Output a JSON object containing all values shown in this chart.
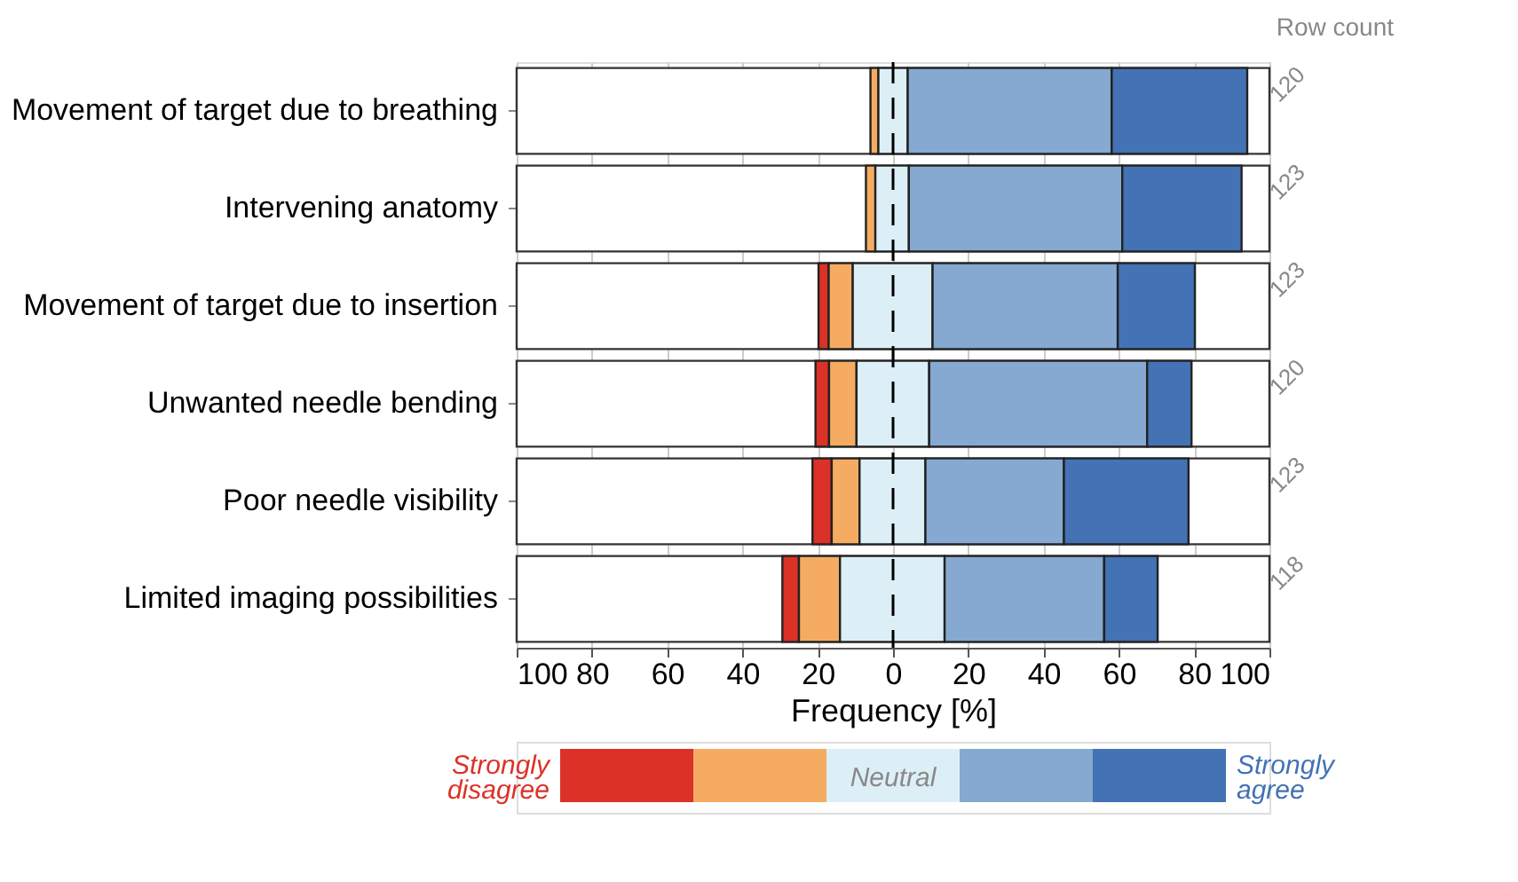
{
  "chart_data": {
    "type": "bar",
    "orientation": "horizontal",
    "categories": [
      "Movement of target due to breathing",
      "Intervening anatomy",
      "Movement of target due to insertion",
      "Unwanted needle bending",
      "Poor needle visibility",
      "Limited imaging possibilities"
    ],
    "series": [
      {
        "name": "Strongly disagree",
        "color": "#dc3127",
        "base": [
          null,
          null,
          -19.8,
          -20.6,
          -21.4,
          -29.4
        ],
        "values": [
          null,
          null,
          2.7,
          3.6,
          5.1,
          4.4
        ]
      },
      {
        "color": "#f5ac62",
        "base": [
          -6.0,
          -7.2,
          -17.1,
          -17.0,
          -16.3,
          -25.0
        ],
        "values": [
          2.1,
          2.5,
          6.4,
          7.3,
          7.4,
          10.9
        ]
      },
      {
        "name": "Neutral",
        "color": "#ddeff6",
        "base": [
          -3.9,
          -4.7,
          -10.7,
          -9.7,
          -8.9,
          -14.1
        ],
        "values": [
          7.8,
          8.9,
          21.2,
          19.3,
          17.5,
          27.8
        ]
      },
      {
        "color": "#85a9d0",
        "base": [
          3.9,
          4.2,
          10.5,
          9.6,
          8.6,
          13.7
        ],
        "values": [
          54.2,
          56.7,
          49.2,
          57.9,
          36.8,
          42.4
        ]
      },
      {
        "name": "Strongly agree",
        "color": "#4372b5",
        "base": [
          58.1,
          60.9,
          59.7,
          67.5,
          45.4,
          56.1
        ],
        "values": [
          36.0,
          31.7,
          20.5,
          11.8,
          33.1,
          14.2
        ]
      }
    ],
    "xlabel": "Frequency [%]",
    "xlim": [
      -100,
      100
    ],
    "xticks": [
      {
        "value": -100,
        "label": "100"
      },
      {
        "value": -80,
        "label": "80"
      },
      {
        "value": -60,
        "label": "60"
      },
      {
        "value": -40,
        "label": "40"
      },
      {
        "value": -20,
        "label": "20"
      },
      0,
      20,
      40,
      60,
      80,
      100
    ],
    "grid": "x",
    "legend": "bottom",
    "ref_lines": [
      {
        "axis": "x",
        "value": 0,
        "line_style": "dashed",
        "color": "#000000"
      }
    ],
    "annotations": [
      "Row count",
      "120",
      "123",
      "123",
      "120",
      "123",
      "118"
    ]
  }
}
